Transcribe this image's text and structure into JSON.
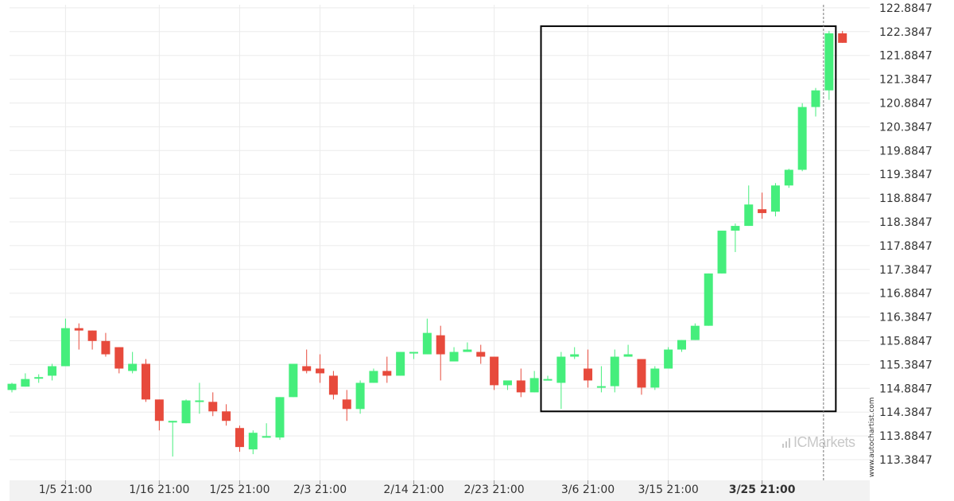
{
  "chart_data": {
    "type": "candlestick",
    "title": "",
    "xlabel": "",
    "ylabel": "",
    "ylim": [
      112.95,
      122.95
    ],
    "y_ticks": [
      "122.8847",
      "122.3847",
      "121.8847",
      "121.3847",
      "120.8847",
      "120.3847",
      "119.8847",
      "119.3847",
      "118.8847",
      "118.3847",
      "117.8847",
      "117.3847",
      "116.8847",
      "116.3847",
      "115.8847",
      "115.3847",
      "114.8847",
      "114.3847",
      "113.8847",
      "113.3847"
    ],
    "x_ticks": [
      {
        "label": "1/5 21:00",
        "index": 4,
        "bold": false
      },
      {
        "label": "1/16 21:00",
        "index": 11,
        "bold": false
      },
      {
        "label": "1/25 21:00",
        "index": 17,
        "bold": false
      },
      {
        "label": "2/3 21:00",
        "index": 23,
        "bold": false
      },
      {
        "label": "2/14 21:00",
        "index": 30,
        "bold": false
      },
      {
        "label": "2/23 21:00",
        "index": 36,
        "bold": false
      },
      {
        "label": "3/6 21:00",
        "index": 43,
        "bold": false
      },
      {
        "label": "3/15 21:00",
        "index": 49,
        "bold": false
      },
      {
        "label": "3/25 21:00",
        "index": 56,
        "bold": true
      }
    ],
    "grid": true,
    "up_color": "#45ee7c",
    "down_color": "#e74a3c",
    "candles": [
      {
        "o": 114.85,
        "h": 115.0,
        "l": 114.8,
        "c": 114.98
      },
      {
        "o": 114.92,
        "h": 115.2,
        "l": 114.92,
        "c": 115.08
      },
      {
        "o": 115.1,
        "h": 115.18,
        "l": 115.0,
        "c": 115.12
      },
      {
        "o": 115.15,
        "h": 115.4,
        "l": 115.05,
        "c": 115.35
      },
      {
        "o": 115.35,
        "h": 116.35,
        "l": 115.35,
        "c": 116.15
      },
      {
        "o": 116.15,
        "h": 116.25,
        "l": 115.7,
        "c": 116.1
      },
      {
        "o": 116.1,
        "h": 116.1,
        "l": 115.7,
        "c": 115.88
      },
      {
        "o": 115.88,
        "h": 116.05,
        "l": 115.55,
        "c": 115.6
      },
      {
        "o": 115.75,
        "h": 115.75,
        "l": 115.2,
        "c": 115.3
      },
      {
        "o": 115.25,
        "h": 115.65,
        "l": 115.2,
        "c": 115.4
      },
      {
        "o": 115.4,
        "h": 115.5,
        "l": 114.6,
        "c": 114.65
      },
      {
        "o": 114.65,
        "h": 114.65,
        "l": 114.0,
        "c": 114.2
      },
      {
        "o": 114.2,
        "h": 114.2,
        "l": 113.45,
        "c": 114.2
      },
      {
        "o": 114.15,
        "h": 114.65,
        "l": 114.15,
        "c": 114.63
      },
      {
        "o": 114.63,
        "h": 115.0,
        "l": 114.35,
        "c": 114.63
      },
      {
        "o": 114.6,
        "h": 114.8,
        "l": 114.3,
        "c": 114.4
      },
      {
        "o": 114.4,
        "h": 114.55,
        "l": 114.1,
        "c": 114.2
      },
      {
        "o": 114.05,
        "h": 114.1,
        "l": 113.55,
        "c": 113.65
      },
      {
        "o": 113.6,
        "h": 114.0,
        "l": 113.5,
        "c": 113.95
      },
      {
        "o": 113.88,
        "h": 114.15,
        "l": 113.85,
        "c": 113.88
      },
      {
        "o": 113.85,
        "h": 114.7,
        "l": 113.8,
        "c": 114.7
      },
      {
        "o": 114.7,
        "h": 115.4,
        "l": 114.7,
        "c": 115.4
      },
      {
        "o": 115.35,
        "h": 115.7,
        "l": 115.2,
        "c": 115.25
      },
      {
        "o": 115.3,
        "h": 115.6,
        "l": 115.0,
        "c": 115.2
      },
      {
        "o": 115.15,
        "h": 115.25,
        "l": 114.65,
        "c": 114.75
      },
      {
        "o": 114.65,
        "h": 114.85,
        "l": 114.2,
        "c": 114.45
      },
      {
        "o": 114.45,
        "h": 115.05,
        "l": 114.35,
        "c": 115.0
      },
      {
        "o": 115.0,
        "h": 115.3,
        "l": 115.0,
        "c": 115.25
      },
      {
        "o": 115.25,
        "h": 115.55,
        "l": 115.0,
        "c": 115.15
      },
      {
        "o": 115.15,
        "h": 115.65,
        "l": 115.15,
        "c": 115.65
      },
      {
        "o": 115.65,
        "h": 115.65,
        "l": 115.5,
        "c": 115.65
      },
      {
        "o": 115.6,
        "h": 116.35,
        "l": 115.6,
        "c": 116.05
      },
      {
        "o": 116.0,
        "h": 116.2,
        "l": 115.05,
        "c": 115.6
      },
      {
        "o": 115.45,
        "h": 115.75,
        "l": 115.45,
        "c": 115.65
      },
      {
        "o": 115.65,
        "h": 115.85,
        "l": 115.65,
        "c": 115.7
      },
      {
        "o": 115.65,
        "h": 115.8,
        "l": 115.4,
        "c": 115.55
      },
      {
        "o": 115.55,
        "h": 115.55,
        "l": 114.85,
        "c": 114.95
      },
      {
        "o": 114.95,
        "h": 115.0,
        "l": 114.85,
        "c": 115.05
      },
      {
        "o": 115.05,
        "h": 115.3,
        "l": 114.7,
        "c": 114.8
      },
      {
        "o": 114.8,
        "h": 115.25,
        "l": 114.8,
        "c": 115.1
      },
      {
        "o": 115.08,
        "h": 115.15,
        "l": 115.05,
        "c": 115.08
      },
      {
        "o": 115.0,
        "h": 115.65,
        "l": 114.45,
        "c": 115.55
      },
      {
        "o": 115.55,
        "h": 115.75,
        "l": 115.5,
        "c": 115.6
      },
      {
        "o": 115.3,
        "h": 115.7,
        "l": 114.9,
        "c": 115.05
      },
      {
        "o": 114.93,
        "h": 115.35,
        "l": 114.8,
        "c": 114.93
      },
      {
        "o": 114.93,
        "h": 115.7,
        "l": 114.8,
        "c": 115.55
      },
      {
        "o": 115.55,
        "h": 115.8,
        "l": 115.55,
        "c": 115.6
      },
      {
        "o": 115.5,
        "h": 115.5,
        "l": 114.75,
        "c": 114.9
      },
      {
        "o": 114.9,
        "h": 115.35,
        "l": 114.85,
        "c": 115.3
      },
      {
        "o": 115.3,
        "h": 115.75,
        "l": 115.3,
        "c": 115.7
      },
      {
        "o": 115.7,
        "h": 115.9,
        "l": 115.65,
        "c": 115.9
      },
      {
        "o": 115.9,
        "h": 116.25,
        "l": 115.9,
        "c": 116.2
      },
      {
        "o": 116.2,
        "h": 117.3,
        "l": 116.2,
        "c": 117.3
      },
      {
        "o": 117.3,
        "h": 118.2,
        "l": 117.3,
        "c": 118.2
      },
      {
        "o": 118.2,
        "h": 118.35,
        "l": 117.75,
        "c": 118.3
      },
      {
        "o": 118.3,
        "h": 119.15,
        "l": 118.3,
        "c": 118.75
      },
      {
        "o": 118.65,
        "h": 119.0,
        "l": 118.45,
        "c": 118.57
      },
      {
        "o": 118.6,
        "h": 119.2,
        "l": 118.5,
        "c": 119.15
      },
      {
        "o": 119.15,
        "h": 119.5,
        "l": 119.1,
        "c": 119.48
      },
      {
        "o": 119.48,
        "h": 120.88,
        "l": 119.45,
        "c": 120.8
      },
      {
        "o": 120.8,
        "h": 121.2,
        "l": 120.6,
        "c": 121.15
      },
      {
        "o": 121.15,
        "h": 122.4,
        "l": 120.95,
        "c": 122.35
      },
      {
        "o": 122.35,
        "h": 122.4,
        "l": 122.15,
        "c": 122.15
      }
    ],
    "pattern_box": {
      "from_index": 40,
      "to_index": 61,
      "low": 114.4,
      "high": 122.5
    },
    "current_index": 61
  },
  "branding": {
    "logo_text_ic": "IC",
    "logo_text_rest": "Markets",
    "credit": "www.autochartist.com"
  }
}
